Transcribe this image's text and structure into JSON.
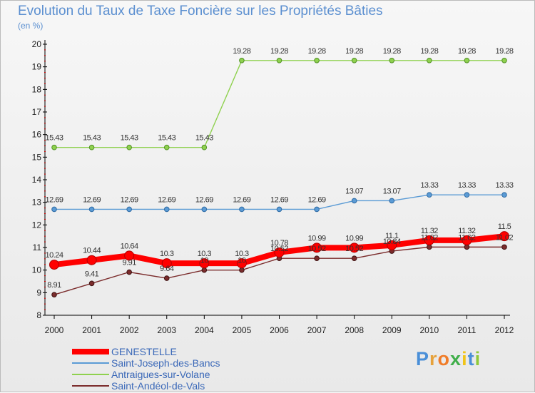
{
  "chart_data": {
    "type": "line",
    "title": "Evolution du Taux de Taxe Foncière sur les Propriétés Bâties",
    "subtitle": "(en %)",
    "xlabel": "",
    "ylabel": "(en %)",
    "ylim": [
      8,
      20
    ],
    "yticks": [
      "8",
      "9",
      "10",
      "11",
      "12",
      "13",
      "14",
      "15",
      "16",
      "17",
      "18",
      "19",
      "20"
    ],
    "categories": [
      "2000",
      "2001",
      "2002",
      "2003",
      "2004",
      "2005",
      "2006",
      "2007",
      "2008",
      "2009",
      "2010",
      "2011",
      "2012"
    ],
    "grid": false,
    "legend": "bottom-left",
    "series": [
      {
        "name": "GENESTELLE",
        "color": "#ff0000",
        "values": [
          10.24,
          10.44,
          10.64,
          10.3,
          10.3,
          10.3,
          10.78,
          10.99,
          10.99,
          11.1,
          11.32,
          11.32,
          11.5
        ],
        "labels": [
          "10.24",
          "10.44",
          "10.64",
          "10.3",
          "10.3",
          "10.3",
          "10.78",
          "10.99",
          "10.99",
          "11.1",
          "11.32",
          "11.32",
          "11.5"
        ]
      },
      {
        "name": "Saint-Joseph-des-Bancs",
        "color": "#5b9bd5",
        "values": [
          12.69,
          12.69,
          12.69,
          12.69,
          12.69,
          12.69,
          12.69,
          12.69,
          13.07,
          13.07,
          13.33,
          13.33,
          13.33
        ],
        "labels": [
          "12.69",
          "12.69",
          "12.69",
          "12.69",
          "12.69",
          "12.69",
          "12.69",
          "12.69",
          "13.07",
          "13.07",
          "13.33",
          "13.33",
          "13.33"
        ]
      },
      {
        "name": "Antraigues-sur-Volane",
        "color": "#8fd14f",
        "values": [
          15.43,
          15.43,
          15.43,
          15.43,
          15.43,
          19.28,
          19.28,
          19.28,
          19.28,
          19.28,
          19.28,
          19.28,
          19.28
        ],
        "labels": [
          "15.43",
          "15.43",
          "15.43",
          "15.43",
          "15.43",
          "19.28",
          "19.28",
          "19.28",
          "19.28",
          "19.28",
          "19.28",
          "19.28",
          "19.28"
        ]
      },
      {
        "name": "Saint-Andéol-de-Vals",
        "color": "#7b2c2c",
        "values": [
          8.91,
          9.41,
          9.91,
          9.64,
          10,
          10,
          10.52,
          10.52,
          10.52,
          10.84,
          11.02,
          11.02,
          11.02
        ],
        "labels": [
          "8.91",
          "9.41",
          "9.91",
          "9.64",
          "10",
          "10",
          "10.52",
          "10.52",
          "10.52",
          "10.84",
          "11.02",
          "11.02",
          "11.02"
        ]
      }
    ]
  },
  "logo": {
    "letters": [
      "P",
      "r",
      "o",
      "x",
      "i",
      "t",
      "i"
    ],
    "colors": [
      "#4a8fd8",
      "#e6a23c",
      "#f07c28",
      "#3fae49",
      "#f0c419",
      "#4a8fd8",
      "#8fc93a"
    ]
  }
}
